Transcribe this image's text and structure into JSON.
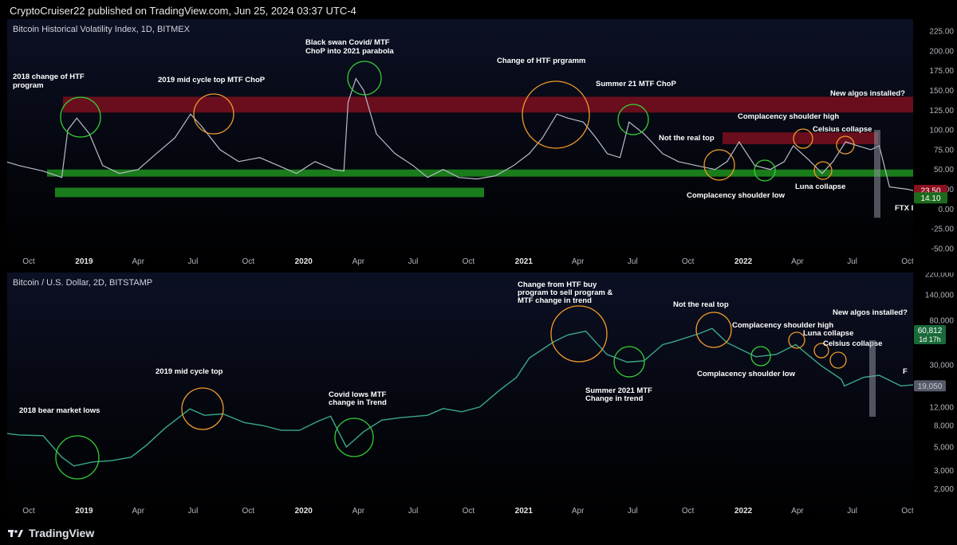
{
  "header": {
    "text": "CryptoCruiser22 published on TradingView.com, Jun 25, 2024 03:37 UTC-4"
  },
  "footer": {
    "brand": "TradingView"
  },
  "chart_data": [
    {
      "type": "line",
      "title": "Bitcoin Historical Volatility Index, 1D, BITMEX",
      "ylim": [
        -50,
        225
      ],
      "y_ticks": [
        "225.00",
        "200.00",
        "175.00",
        "150.00",
        "125.00",
        "100.00",
        "75.00",
        "50.00",
        "25.00",
        "0.00",
        "-25.00",
        "-50.00"
      ],
      "x_ticks": [
        "Oct",
        "2019",
        "Apr",
        "Jul",
        "Oct",
        "2020",
        "Apr",
        "Jul",
        "Oct",
        "2021",
        "Apr",
        "Jul",
        "Oct",
        "2022",
        "Apr",
        "Jul",
        "Oct"
      ],
      "series": [
        {
          "x": [
            "2018-08-01",
            "2018-09-15",
            "2018-10-25",
            "2018-11-25",
            "2018-12-05",
            "2018-12-20",
            "2019-01-10",
            "2019-02-01",
            "2019-03-01",
            "2019-04-01",
            "2019-05-01",
            "2019-06-01",
            "2019-06-27",
            "2019-07-15",
            "2019-08-15",
            "2019-09-15",
            "2019-10-20",
            "2019-11-20",
            "2019-12-20",
            "2020-01-20",
            "2020-02-20",
            "2020-03-08",
            "2020-03-15",
            "2020-03-28",
            "2020-04-10",
            "2020-05-01",
            "2020-06-01",
            "2020-07-01",
            "2020-07-25",
            "2020-08-20",
            "2020-09-15",
            "2020-10-15",
            "2020-11-15",
            "2020-12-15",
            "2021-01-10",
            "2021-02-01",
            "2021-02-25",
            "2021-03-15",
            "2021-04-10",
            "2021-05-01",
            "2021-05-20",
            "2021-06-10",
            "2021-06-25",
            "2021-07-20",
            "2021-08-20",
            "2021-09-15",
            "2021-10-15",
            "2021-11-15",
            "2021-12-05",
            "2021-12-25",
            "2022-01-20",
            "2022-02-15",
            "2022-03-10",
            "2022-03-25",
            "2022-04-20",
            "2022-05-12",
            "2022-05-30",
            "2022-06-20",
            "2022-07-10",
            "2022-08-01",
            "2022-08-15",
            "2022-09-01",
            "2022-10-01",
            "2022-10-31"
          ],
          "y": [
            65,
            55,
            48,
            40,
            100,
            115,
            95,
            55,
            45,
            50,
            70,
            90,
            120,
            105,
            75,
            60,
            65,
            55,
            45,
            60,
            50,
            48,
            135,
            165,
            150,
            95,
            70,
            55,
            40,
            50,
            40,
            38,
            42,
            55,
            70,
            90,
            120,
            115,
            110,
            90,
            70,
            65,
            110,
            95,
            70,
            60,
            55,
            50,
            60,
            85,
            55,
            50,
            60,
            80,
            62,
            45,
            60,
            85,
            80,
            75,
            80,
            28,
            25,
            20
          ]
        }
      ],
      "zones": [
        {
          "color": "#8b1020",
          "from": 142,
          "to": 122,
          "label": "upper red band"
        },
        {
          "color": "#1d8a1d",
          "from": 50,
          "to": 41,
          "label": "green band"
        },
        {
          "color": "#1d8a1d",
          "from": 27,
          "to": 15,
          "label": "lower green band"
        }
      ],
      "annotations": [
        "2018 change of HTF program",
        "2019 mid cycle top MTF ChoP",
        "Black swan Covid/ MTF ChoP into 2021 parabola",
        "Change of HTF prgramm",
        "Summer 21 MTF ChoP",
        "Not the real top",
        "Complacency shoulder high",
        "Celsius collapse",
        "New algos installed?",
        "Complacency shoulder low",
        "Luna collapse",
        "FTX I"
      ],
      "price_labels": [
        {
          "text": "23.50",
          "color": "#8b1020"
        },
        {
          "text": "14.10",
          "color": "#1d6b1d"
        }
      ]
    },
    {
      "type": "line",
      "title": "Bitcoin / U.S. Dollar, 2D, BITSTAMP",
      "scale": "log",
      "ylim": [
        1500,
        220000
      ],
      "y_ticks": [
        "220,000",
        "140,000",
        "80,000",
        "30,000",
        "12,000",
        "8,000",
        "5,000",
        "3,000",
        "2,000"
      ],
      "x_ticks": [
        "Oct",
        "2019",
        "Apr",
        "Jul",
        "Oct",
        "2020",
        "Apr",
        "Jul",
        "Oct",
        "2021",
        "Apr",
        "Jul",
        "Oct",
        "2022",
        "Apr",
        "Jul",
        "Oct"
      ],
      "series": [
        {
          "x": [
            "2018-08-01",
            "2018-09-15",
            "2018-10-25",
            "2018-11-25",
            "2018-12-15",
            "2019-01-15",
            "2019-02-15",
            "2019-03-20",
            "2019-04-15",
            "2019-05-15",
            "2019-06-26",
            "2019-07-20",
            "2019-08-20",
            "2019-09-25",
            "2019-10-25",
            "2019-11-25",
            "2019-12-25",
            "2020-01-25",
            "2020-02-15",
            "2020-03-12",
            "2020-04-10",
            "2020-05-10",
            "2020-06-10",
            "2020-07-25",
            "2020-08-20",
            "2020-09-20",
            "2020-10-20",
            "2020-11-20",
            "2020-12-20",
            "2021-01-10",
            "2021-02-20",
            "2021-03-15",
            "2021-04-14",
            "2021-05-19",
            "2021-06-22",
            "2021-07-20",
            "2021-08-20",
            "2021-09-07",
            "2021-10-20",
            "2021-11-10",
            "2021-12-05",
            "2022-01-22",
            "2022-02-25",
            "2022-03-29",
            "2022-05-09",
            "2022-06-13",
            "2022-06-18",
            "2022-07-20",
            "2022-08-15",
            "2022-09-20",
            "2022-10-31"
          ],
          "y": [
            7000,
            6500,
            6400,
            4000,
            3300,
            3600,
            3700,
            4000,
            5200,
            7500,
            11500,
            10000,
            10300,
            8500,
            8000,
            7200,
            7200,
            8800,
            9800,
            5000,
            7000,
            9000,
            9500,
            10000,
            11600,
            10800,
            12000,
            17000,
            23000,
            35000,
            50000,
            58000,
            63000,
            38000,
            32000,
            33000,
            47000,
            50000,
            60000,
            67000,
            49000,
            36000,
            38000,
            47000,
            30000,
            22000,
            19000,
            23000,
            24000,
            19000,
            20000
          ]
        }
      ],
      "annotations": [
        "Change from HTF buy program to sell program & MTF change in trend",
        "Not the real top",
        "New algos installed?",
        "2019 mid cycle top",
        "Complacency shoulder high",
        "Luna collapse",
        "Celsius collapse",
        "2018 bear market lows",
        "Covid lows MTF change in Trend",
        "Summer 2021 MTF Change in trend",
        "Complacency shoulder low",
        "F"
      ],
      "price_labels": [
        {
          "text": "60,812",
          "sub": "1d 17h",
          "color": "#1a6a3a"
        },
        {
          "text": "19,050",
          "color": "#555b6a"
        }
      ]
    }
  ]
}
